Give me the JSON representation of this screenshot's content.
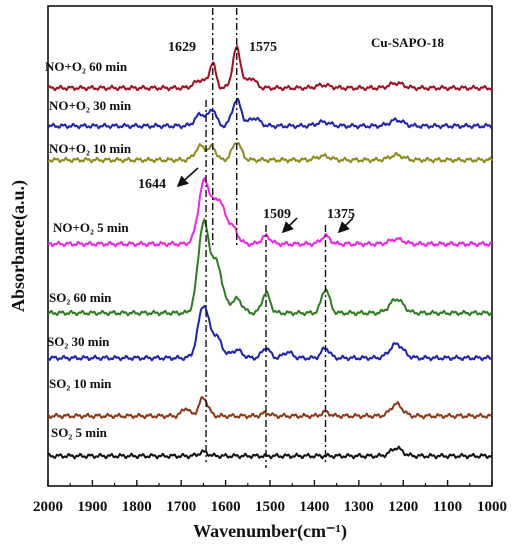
{
  "chart_data": {
    "type": "line",
    "title": "",
    "annotation_text": "Cu-SAPO-18",
    "xlabel": "Wavenumber(cm⁻¹)",
    "ylabel": "Absorbance(a.u.)",
    "xlim": [
      2000,
      1000
    ],
    "x_reversed": true,
    "x_ticks": [
      2000,
      1900,
      1800,
      1700,
      1600,
      1500,
      1400,
      1300,
      1200,
      1100,
      1000
    ],
    "y_ticks_shown": false,
    "grid": false,
    "series": [
      {
        "name": "NO+O₂ 60 min",
        "color": "#a01020",
        "baseline": 88,
        "peaks": [
          [
            1656,
            8,
            14
          ],
          [
            1629,
            24,
            7
          ],
          [
            1575,
            40,
            9
          ],
          [
            1542,
            10,
            10
          ],
          [
            1380,
            3,
            15
          ],
          [
            1215,
            5,
            15
          ]
        ]
      },
      {
        "name": "NO+O₂ 30 min",
        "color": "#1f22b0",
        "baseline": 126,
        "peaks": [
          [
            1656,
            12,
            12
          ],
          [
            1629,
            16,
            8
          ],
          [
            1575,
            26,
            10
          ],
          [
            1535,
            8,
            12
          ],
          [
            1380,
            4,
            15
          ],
          [
            1215,
            6,
            15
          ]
        ]
      },
      {
        "name": "NO+O₂ 10 min",
        "color": "#8f8a1c",
        "baseline": 160,
        "peaks": [
          [
            1656,
            14,
            12
          ],
          [
            1629,
            12,
            8
          ],
          [
            1575,
            18,
            10
          ],
          [
            1380,
            4,
            15
          ],
          [
            1215,
            5,
            15
          ]
        ]
      },
      {
        "name": "NO+O₂ 5 min",
        "color": "#ee24e8",
        "baseline": 244,
        "peaks": [
          [
            1648,
            62,
            13
          ],
          [
            1615,
            42,
            13
          ],
          [
            1585,
            16,
            12
          ],
          [
            1509,
            8,
            10
          ],
          [
            1375,
            8,
            10
          ],
          [
            1215,
            5,
            15
          ]
        ]
      },
      {
        "name": "SO₂ 60 min",
        "color": "#2e7d1e",
        "baseline": 313,
        "peaks": [
          [
            1650,
            88,
            12
          ],
          [
            1620,
            48,
            13
          ],
          [
            1575,
            14,
            12
          ],
          [
            1509,
            20,
            9
          ],
          [
            1375,
            24,
            9
          ],
          [
            1215,
            14,
            15
          ]
        ]
      },
      {
        "name": "SO₂ 30 min",
        "color": "#1f22b0",
        "baseline": 358,
        "peaks": [
          [
            1650,
            52,
            12
          ],
          [
            1620,
            20,
            12
          ],
          [
            1575,
            8,
            12
          ],
          [
            1509,
            10,
            9
          ],
          [
            1460,
            6,
            10
          ],
          [
            1375,
            10,
            9
          ],
          [
            1215,
            14,
            15
          ]
        ]
      },
      {
        "name": "SO₂ 10 min",
        "color": "#8a3a18",
        "baseline": 416,
        "peaks": [
          [
            1690,
            8,
            8
          ],
          [
            1650,
            18,
            10
          ],
          [
            1509,
            3,
            9
          ],
          [
            1375,
            4,
            9
          ],
          [
            1215,
            12,
            13
          ]
        ]
      },
      {
        "name": "SO₂ 5 min",
        "color": "#111111",
        "baseline": 456,
        "peaks": [
          [
            1650,
            4,
            10
          ],
          [
            1215,
            8,
            13
          ]
        ]
      }
    ],
    "peak_markers": [
      {
        "label": "1629",
        "x": 1629
      },
      {
        "label": "1575",
        "x": 1575
      },
      {
        "label": "1644",
        "x": 1644
      },
      {
        "label": "1509",
        "x": 1509
      },
      {
        "label": "1375",
        "x": 1375
      }
    ]
  }
}
